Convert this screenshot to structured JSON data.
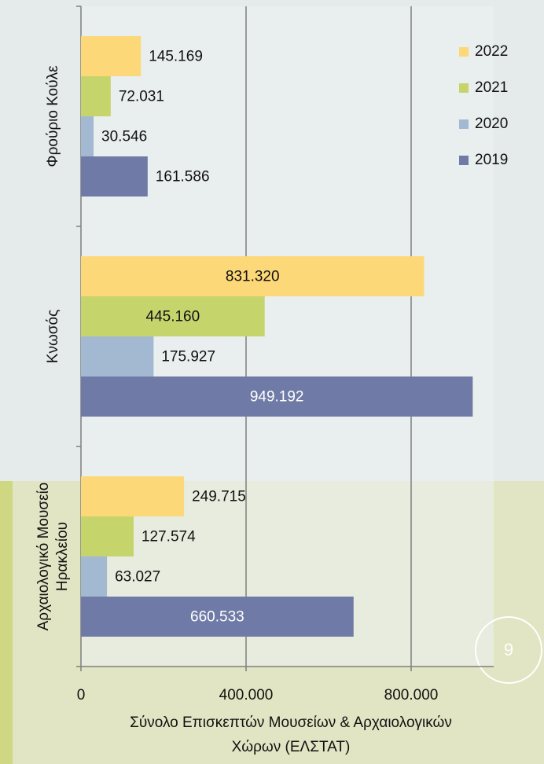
{
  "chart_data": {
    "type": "bar",
    "orientation": "horizontal",
    "categories": [
      "Φρούριο Κούλε",
      "Κνωσός",
      "Αρχαιολογικό Μουσείο Ηρακλείου"
    ],
    "series": [
      {
        "name": "2019",
        "color": "#6f7ba6",
        "values": [
          161586,
          949192,
          660533
        ],
        "value_labels": [
          "161.586",
          "949.192",
          "660.533"
        ]
      },
      {
        "name": "2020",
        "color": "#a3b9d1",
        "values": [
          30546,
          175927,
          63027
        ],
        "value_labels": [
          "30.546",
          "175.927",
          "63.027"
        ]
      },
      {
        "name": "2021",
        "color": "#c6d46c",
        "values": [
          72031,
          445160,
          127574
        ],
        "value_labels": [
          "72.031",
          "445.160",
          "127.574"
        ]
      },
      {
        "name": "2022",
        "color": "#fdd878",
        "values": [
          145169,
          831320,
          249715
        ],
        "value_labels": [
          "145.169",
          "831.320",
          "249.715"
        ]
      }
    ],
    "xlim": [
      0,
      1000000
    ],
    "xticks": [
      0,
      {
        "value": 400000,
        "label": "400.000"
      },
      {
        "value": 800000,
        "label": "800.000"
      }
    ],
    "x_label": "Σύνολο Επισκεπτών Μουσείων & Αρχαιολογικών Χώρων (ΕΛΣΤΑΤ)",
    "grid": true,
    "legend": "upper right"
  },
  "page_number": "9"
}
